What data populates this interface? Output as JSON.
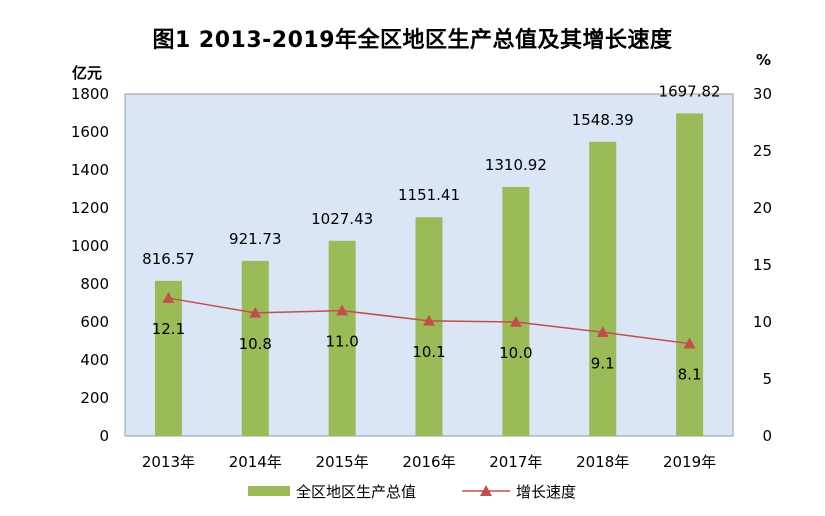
{
  "chart_data": {
    "type": "bar",
    "title": "图1  2013-2019年全区地区生产总值及其增长速度",
    "categories": [
      "2013年",
      "2014年",
      "2015年",
      "2016年",
      "2017年",
      "2018年",
      "2019年"
    ],
    "series": [
      {
        "name": "全区地区生产总值",
        "type": "bar",
        "axis": "left",
        "color": "#9bbb59",
        "values": [
          816.57,
          921.73,
          1027.43,
          1151.41,
          1310.92,
          1548.39,
          1697.82
        ],
        "labels": [
          "816.57",
          "921.73",
          "1027.43",
          "1151.41",
          "1310.92",
          "1548.39",
          "1697.82"
        ]
      },
      {
        "name": "增长速度",
        "type": "line",
        "axis": "right",
        "color": "#c0504d",
        "values": [
          12.1,
          10.8,
          11.0,
          10.1,
          10.0,
          9.1,
          8.1
        ],
        "labels": [
          "12.1",
          "10.8",
          "11.0",
          "10.1",
          "10.0",
          "9.1",
          "8.1"
        ]
      }
    ],
    "y_left": {
      "unit": "亿元",
      "ylim": [
        0,
        1800
      ],
      "ticks": [
        0,
        200,
        400,
        600,
        800,
        1000,
        1200,
        1400,
        1600,
        1800
      ]
    },
    "y_right": {
      "unit": "%",
      "ylim": [
        0,
        30
      ],
      "ticks": [
        0,
        5,
        10,
        15,
        20,
        25,
        30
      ]
    },
    "plot_background": "#dae5f5",
    "legend": "bottom",
    "grid": false
  }
}
